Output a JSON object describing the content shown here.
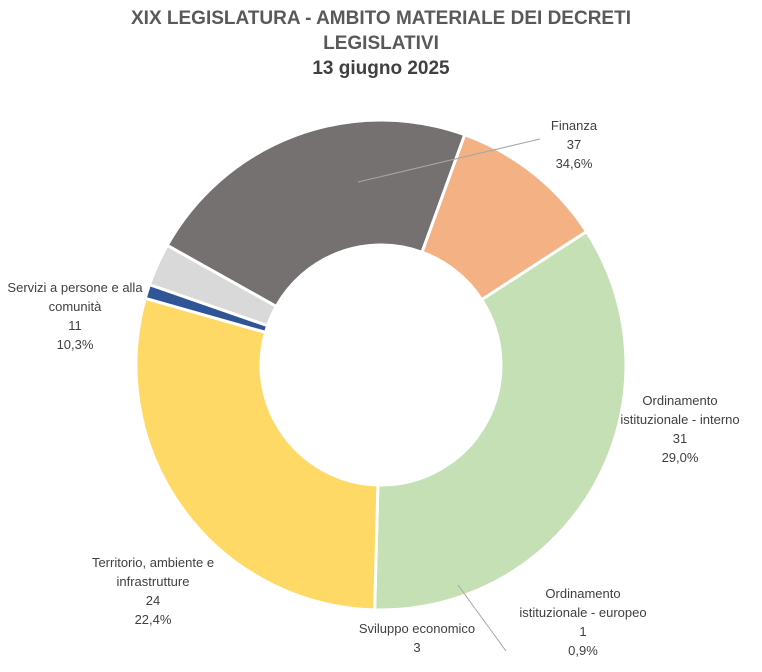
{
  "chart_data": {
    "type": "pie",
    "title": "XIX LEGISLATURA - AMBITO MATERIALE DEI DECRETI LEGISLATIVI",
    "title_lines": [
      "XIX LEGISLATURA - AMBITO MATERIALE DEI DECRETI",
      "LEGISLATIVI"
    ],
    "subtitle": "13 giugno 2025",
    "donut": true,
    "categories": [
      "Finanza",
      "Ordinamento istituzionale - interno",
      "Ordinamento istituzionale -  europeo",
      "Sviluppo economico",
      "Territorio, ambiente e infrastrutture",
      "Servizi a persone e alla comunità"
    ],
    "values": [
      37,
      31,
      1,
      3,
      24,
      11
    ],
    "percent_labels": [
      "34,6%",
      "29,0%",
      "0,9%",
      "",
      "22,4%",
      "10,3%"
    ],
    "colors": [
      "#c5e0b4",
      "#ffd966",
      "#2f5597",
      "#d9d9d9",
      "#767171",
      "#f4b183"
    ],
    "labels": [
      {
        "lines": [
          "Finanza",
          "37",
          "34,6%"
        ]
      },
      {
        "lines": [
          "Ordinamento",
          "istituzionale - interno",
          "31",
          "29,0%"
        ]
      },
      {
        "lines": [
          "Ordinamento",
          "istituzionale -  europeo",
          "1",
          "0,9%"
        ]
      },
      {
        "lines": [
          "Sviluppo economico",
          "3"
        ]
      },
      {
        "lines": [
          "Territorio, ambiente e",
          "infrastrutture",
          "24",
          "22,4%"
        ]
      },
      {
        "lines": [
          "Servizi a persone e alla",
          "comunità",
          "11",
          "10,3%"
        ]
      }
    ]
  }
}
